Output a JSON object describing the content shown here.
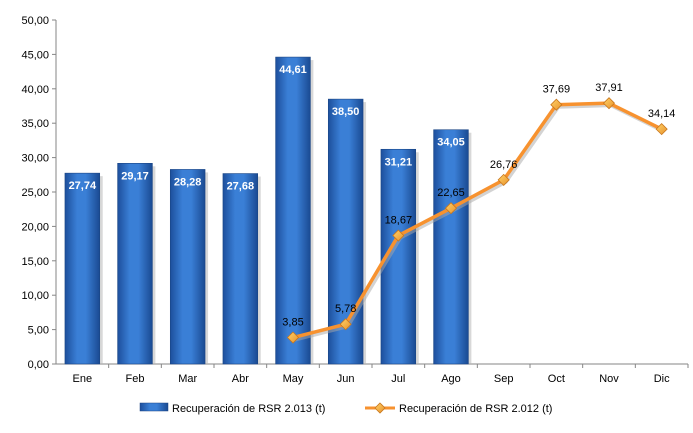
{
  "chart_data": {
    "type": "bar",
    "title": "",
    "xlabel": "",
    "ylabel": "",
    "ylim": [
      0,
      50
    ],
    "ytick_step": 5,
    "ytick_labels": [
      "0,00",
      "5,00",
      "10,00",
      "15,00",
      "20,00",
      "25,00",
      "30,00",
      "35,00",
      "40,00",
      "45,00",
      "50,00"
    ],
    "categories": [
      "Ene",
      "Feb",
      "Mar",
      "Abr",
      "May",
      "Jun",
      "Jul",
      "Ago",
      "Sep",
      "Oct",
      "Nov",
      "Dic"
    ],
    "grid": false,
    "legend_position": "bottom",
    "series": [
      {
        "name": "Recuperación de RSR 2.013 (t)",
        "type": "bar",
        "color": "#2e6fc4",
        "values": [
          27.74,
          29.17,
          28.28,
          27.68,
          44.61,
          38.5,
          31.21,
          34.05,
          null,
          null,
          null,
          null
        ],
        "labels": [
          "27,74",
          "29,17",
          "28,28",
          "27,68",
          "44,61",
          "38,50",
          "31,21",
          "34,05",
          "",
          "",
          "",
          ""
        ]
      },
      {
        "name": "Recuperación de RSR 2.012 (t)",
        "type": "line",
        "color": "#f7922f",
        "values": [
          null,
          null,
          null,
          null,
          3.85,
          5.78,
          18.67,
          22.65,
          26.76,
          37.69,
          37.91,
          34.14
        ],
        "labels": [
          "",
          "",
          "",
          "",
          "3,85",
          "5,78",
          "18,67",
          "22,65",
          "26,76",
          "37,69",
          "37,91",
          "34,14"
        ]
      }
    ]
  }
}
